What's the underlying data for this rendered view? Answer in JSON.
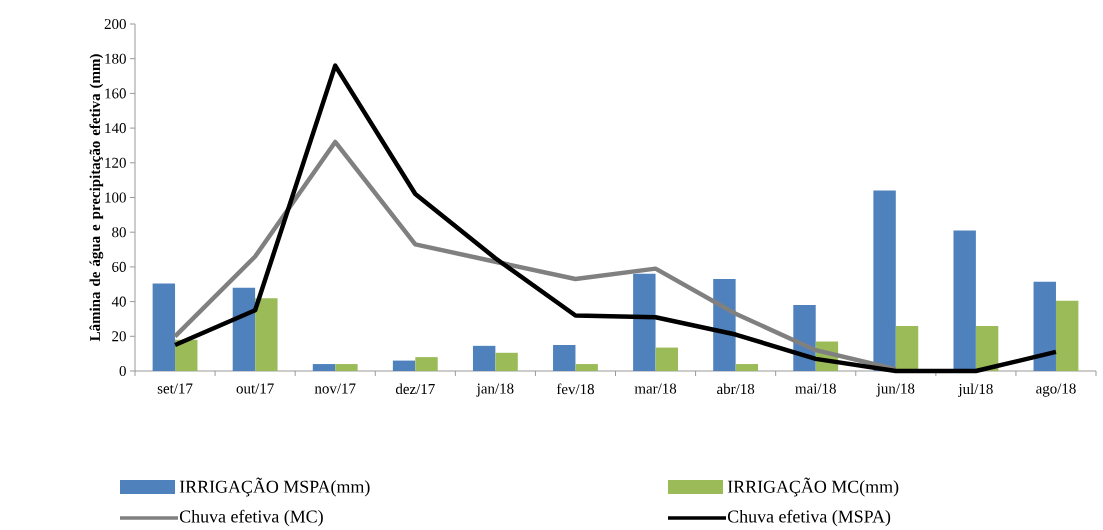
{
  "chart_data": {
    "type": "bar",
    "ylabel": "Lâmina de água e precipitação efetiva (mm)",
    "categories": [
      "set/17",
      "out/17",
      "nov/17",
      "dez/17",
      "jan/18",
      "fev/18",
      "mar/18",
      "abr/18",
      "mai/18",
      "jun/18",
      "jul/18",
      "ago/18"
    ],
    "series": [
      {
        "name": "IRRIGAÇÃO MSPA(mm)",
        "color": "#4f81bd",
        "values": [
          50.5,
          48,
          4,
          6,
          14.5,
          15,
          56,
          53,
          38,
          104,
          81,
          51.5
        ]
      },
      {
        "name": "IRRIGAÇÃO MC(mm)",
        "color": "#9bbb59",
        "values": [
          18,
          42,
          4,
          8,
          10.5,
          4,
          13.5,
          4,
          17,
          26,
          26,
          40.5
        ]
      },
      {
        "name": "Chuva efetiva (MC)",
        "type": "line",
        "color": "#808080",
        "values": [
          20,
          66,
          132,
          73,
          63,
          53,
          59,
          33,
          12,
          1,
          null,
          null
        ]
      },
      {
        "name": "Chuva efetiva (MSPA)",
        "type": "line",
        "color": "#000000",
        "values": [
          15,
          35,
          176,
          102,
          65,
          32,
          31,
          21,
          7,
          0,
          0,
          11
        ]
      }
    ],
    "ylim": [
      0,
      200
    ],
    "yticks": [
      0,
      20,
      40,
      60,
      80,
      100,
      120,
      140,
      160,
      180,
      200
    ],
    "grid": false,
    "legend": "bottom",
    "marker": "none",
    "line_style": "solid"
  }
}
